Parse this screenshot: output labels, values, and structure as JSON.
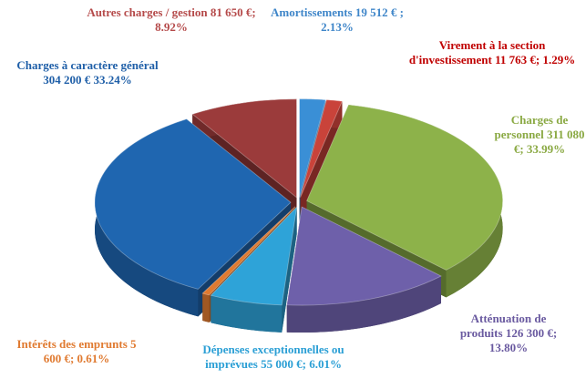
{
  "chart_data": {
    "type": "pie3d",
    "categories": [
      "Amortissements",
      "Virement à la section d'investissement",
      "Charges de personnel",
      "Atténuation de produits",
      "Dépenses exceptionnelles ou imprévues",
      "Intérêts des emprunts",
      "Charges à caractère général",
      "Autres charges / gestion"
    ],
    "amounts": [
      19512,
      11763,
      311080,
      126300,
      55000,
      5600,
      304200,
      81650
    ],
    "amount_labels": [
      "19 512 € ;",
      "11 763 €;",
      "311 080 €;",
      "126 300 €;",
      "55 000 €;",
      "5 600 €;",
      "304 200 €",
      "81 650 €;"
    ],
    "values": [
      2.13,
      1.29,
      33.99,
      13.8,
      6.01,
      0.61,
      33.24,
      8.92
    ],
    "value_labels": [
      "2.13%",
      "1.29%",
      "33.99%",
      "13.80%",
      "6.01%",
      "0.61%",
      "33.24%",
      "8.92%"
    ],
    "colors": [
      "#3a8fd6",
      "#c9433a",
      "#8db24a",
      "#6e60aa",
      "#2ea3d8",
      "#e07a30",
      "#1f66b0",
      "#9b3b3b"
    ]
  }
}
